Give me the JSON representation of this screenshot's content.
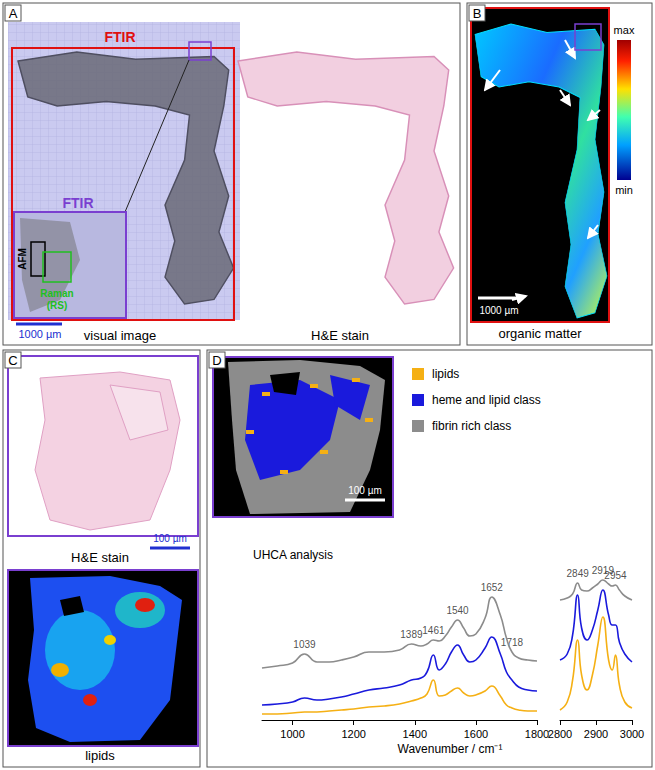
{
  "panels": {
    "A": {
      "label": "A",
      "left_caption": "visual image",
      "right_caption": "H&E stain",
      "boxes": {
        "ftir_large": "FTIR",
        "ftir_small": "FTIR",
        "afm": "AFM",
        "raman": [
          "Raman",
          "(RS)"
        ]
      },
      "scale_bar": "1000 µm"
    },
    "B": {
      "label": "B",
      "caption": "organic matter",
      "colorbar": {
        "max": "max",
        "min": "min"
      },
      "scale_bar": "1000 µm"
    },
    "C": {
      "label": "C",
      "top_caption": "H&E stain",
      "bottom_caption": "lipids",
      "scale_bar": "100 µm"
    },
    "D": {
      "label": "D",
      "scale_bar": "100 µm"
    }
  },
  "chart_data": [
    {
      "type": "line",
      "title": "UHCA analysis",
      "xlabel": "Wavenumber / cm⁻¹",
      "x": [
        900,
        950,
        1000,
        1039,
        1080,
        1120,
        1160,
        1200,
        1250,
        1300,
        1350,
        1389,
        1420,
        1440,
        1461,
        1480,
        1500,
        1520,
        1540,
        1560,
        1580,
        1600,
        1630,
        1652,
        1680,
        1700,
        1718,
        1740,
        1770,
        1800
      ],
      "xlim": [
        900,
        1800
      ],
      "xticks": [
        1000,
        1200,
        1400,
        1600,
        1800
      ],
      "ylim": [
        0,
        1.5
      ],
      "tick_labels": "x",
      "peak_labels": [
        1039,
        1389,
        1461,
        1540,
        1652,
        1718
      ],
      "series": [
        {
          "name": "lipids",
          "color": "#f5b014",
          "values": [
            0.06,
            0.06,
            0.07,
            0.08,
            0.08,
            0.09,
            0.1,
            0.11,
            0.13,
            0.14,
            0.16,
            0.19,
            0.22,
            0.26,
            0.4,
            0.24,
            0.25,
            0.29,
            0.32,
            0.27,
            0.24,
            0.25,
            0.29,
            0.34,
            0.24,
            0.15,
            0.12,
            0.1,
            0.09,
            0.09
          ]
        },
        {
          "name": "heme and lipid class",
          "color": "#1a1adc",
          "values": [
            0.15,
            0.16,
            0.18,
            0.22,
            0.2,
            0.21,
            0.23,
            0.26,
            0.3,
            0.32,
            0.35,
            0.4,
            0.42,
            0.48,
            0.65,
            0.5,
            0.56,
            0.68,
            0.75,
            0.65,
            0.58,
            0.6,
            0.72,
            0.83,
            0.66,
            0.48,
            0.4,
            0.33,
            0.3,
            0.29
          ]
        },
        {
          "name": "fibrin rich class",
          "color": "#8c8c8c",
          "values": [
            0.52,
            0.54,
            0.57,
            0.66,
            0.58,
            0.58,
            0.6,
            0.63,
            0.68,
            0.68,
            0.7,
            0.76,
            0.74,
            0.76,
            0.8,
            0.79,
            0.84,
            0.93,
            1.0,
            0.92,
            0.84,
            0.86,
            1.02,
            1.23,
            1.05,
            0.82,
            0.68,
            0.62,
            0.6,
            0.59
          ]
        }
      ]
    },
    {
      "type": "line",
      "x": [
        2800,
        2820,
        2835,
        2849,
        2860,
        2875,
        2890,
        2905,
        2919,
        2935,
        2945,
        2954,
        2965,
        2980,
        3000
      ],
      "xlim": [
        2800,
        3000
      ],
      "xticks": [
        2800,
        2900,
        3000
      ],
      "ylim": [
        0,
        1.5
      ],
      "tick_labels": "x",
      "peak_labels": [
        2849,
        2919,
        2954
      ],
      "series": [
        {
          "name": "lipids",
          "color": "#f5b014",
          "values": [
            0.1,
            0.18,
            0.4,
            0.8,
            0.45,
            0.3,
            0.45,
            0.75,
            1.03,
            0.6,
            0.5,
            0.65,
            0.35,
            0.18,
            0.12
          ]
        },
        {
          "name": "heme and lipid class",
          "color": "#1a1adc",
          "values": [
            0.6,
            0.66,
            0.85,
            1.25,
            0.92,
            0.8,
            0.9,
            1.1,
            1.3,
            1.05,
            0.95,
            0.95,
            0.78,
            0.66,
            0.58
          ]
        },
        {
          "name": "fibrin rich class",
          "color": "#8c8c8c",
          "values": [
            1.2,
            1.22,
            1.26,
            1.37,
            1.3,
            1.29,
            1.32,
            1.36,
            1.4,
            1.36,
            1.34,
            1.35,
            1.3,
            1.24,
            1.2
          ]
        }
      ]
    }
  ]
}
